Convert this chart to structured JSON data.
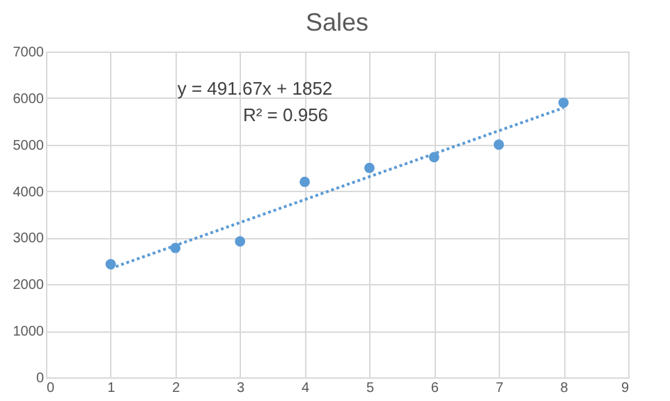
{
  "chart_data": {
    "type": "scatter",
    "title": "Sales",
    "x": [
      1,
      2,
      3,
      4,
      5,
      6,
      7,
      8
    ],
    "series": [
      {
        "color": "#5b9bd5",
        "values": [
          2430,
          2780,
          2920,
          4200,
          4500,
          4730,
          5000,
          5900
        ],
        "marker": "circle"
      },
      {
        "type": "line",
        "color": "#5b9bd5",
        "x": [
          1,
          8
        ],
        "values": [
          2340,
          5790
        ],
        "line_style": "dotted"
      }
    ],
    "annotations": [
      "y = 491.67x + 1852",
      "R² = 0.956"
    ],
    "xlim": [
      0,
      9
    ],
    "xticks": [
      0,
      1,
      2,
      3,
      4,
      5,
      6,
      7,
      8,
      9
    ],
    "ylim": [
      0,
      7000
    ],
    "yticks": [
      0,
      1000,
      2000,
      3000,
      4000,
      5000,
      6000,
      7000
    ],
    "grid": true
  }
}
